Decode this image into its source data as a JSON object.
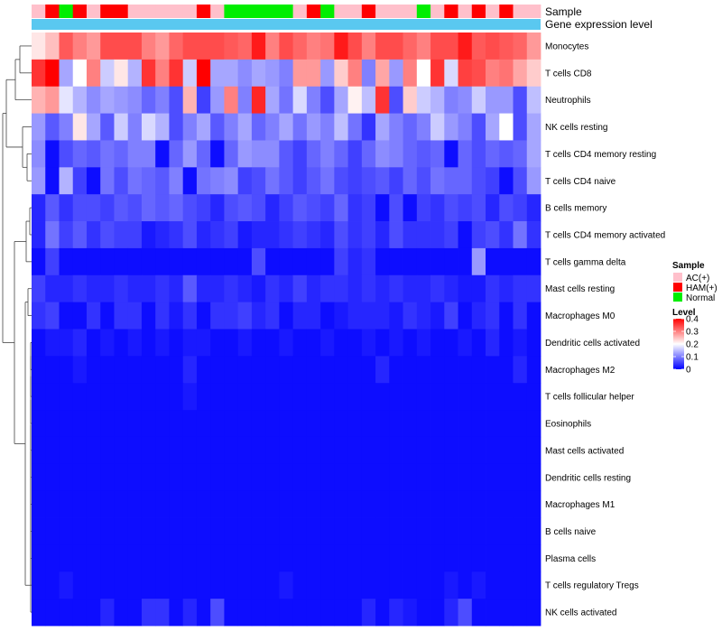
{
  "chart_data": {
    "type": "heatmap",
    "annotation_labels": [
      "Sample",
      "Gene expression level"
    ],
    "annotation_sample": [
      "AC(+)",
      "HAM(+)",
      "Normal",
      "HAM(+)",
      "AC(+)",
      "HAM(+)",
      "HAM(+)",
      "AC(+)",
      "AC(+)",
      "AC(+)",
      "AC(+)",
      "AC(+)",
      "HAM(+)",
      "AC(+)",
      "Normal",
      "Normal",
      "Normal",
      "Normal",
      "Normal",
      "AC(+)",
      "HAM(+)",
      "Normal",
      "AC(+)",
      "AC(+)",
      "HAM(+)",
      "AC(+)",
      "AC(+)",
      "AC(+)",
      "Normal",
      "AC(+)",
      "HAM(+)",
      "AC(+)",
      "HAM(+)",
      "AC(+)",
      "HAM(+)",
      "AC(+)",
      "AC(+)"
    ],
    "rows": [
      {
        "name": "Monocytes",
        "values": [
          0.22,
          0.25,
          0.33,
          0.3,
          0.28,
          0.34,
          0.34,
          0.34,
          0.3,
          0.28,
          0.32,
          0.34,
          0.34,
          0.34,
          0.33,
          0.32,
          0.38,
          0.3,
          0.34,
          0.32,
          0.3,
          0.31,
          0.38,
          0.34,
          0.3,
          0.34,
          0.34,
          0.32,
          0.3,
          0.34,
          0.34,
          0.38,
          0.33,
          0.34,
          0.33,
          0.32,
          0.28
        ]
      },
      {
        "name": "T cells CD8",
        "values": [
          0.36,
          0.4,
          0.13,
          0.2,
          0.3,
          0.16,
          0.22,
          0.14,
          0.36,
          0.3,
          0.36,
          0.16,
          0.4,
          0.13,
          0.13,
          0.11,
          0.13,
          0.12,
          0.1,
          0.28,
          0.28,
          0.12,
          0.24,
          0.3,
          0.1,
          0.27,
          0.12,
          0.3,
          0.2,
          0.36,
          0.17,
          0.35,
          0.34,
          0.3,
          0.31,
          0.27,
          0.24
        ]
      },
      {
        "name": "Neutrophils",
        "values": [
          0.26,
          0.28,
          0.18,
          0.14,
          0.11,
          0.13,
          0.12,
          0.11,
          0.08,
          0.1,
          0.06,
          0.26,
          0.05,
          0.12,
          0.3,
          0.1,
          0.37,
          0.13,
          0.09,
          0.17,
          0.1,
          0.06,
          0.13,
          0.21,
          0.15,
          0.36,
          0.06,
          0.24,
          0.16,
          0.14,
          0.1,
          0.11,
          0.16,
          0.12,
          0.12,
          0.06,
          0.15
        ]
      },
      {
        "name": "NK cells resting",
        "values": [
          0.12,
          0.07,
          0.1,
          0.22,
          0.13,
          0.07,
          0.16,
          0.1,
          0.17,
          0.14,
          0.06,
          0.1,
          0.13,
          0.07,
          0.1,
          0.13,
          0.08,
          0.1,
          0.13,
          0.09,
          0.12,
          0.1,
          0.15,
          0.09,
          0.04,
          0.13,
          0.1,
          0.08,
          0.1,
          0.16,
          0.12,
          0.1,
          0.06,
          0.13,
          0.2,
          0.06,
          0.13
        ]
      },
      {
        "name": "T cells CD4 memory resting",
        "values": [
          0.11,
          0.01,
          0.06,
          0.08,
          0.07,
          0.09,
          0.08,
          0.1,
          0.1,
          0.01,
          0.08,
          0.12,
          0.08,
          0.01,
          0.08,
          0.12,
          0.11,
          0.11,
          0.07,
          0.05,
          0.08,
          0.1,
          0.08,
          0.05,
          0.08,
          0.11,
          0.1,
          0.08,
          0.07,
          0.08,
          0.01,
          0.08,
          0.06,
          0.08,
          0.07,
          0.08,
          0.13
        ]
      },
      {
        "name": "T cells CD4 naive",
        "values": [
          0.12,
          0.01,
          0.14,
          0.05,
          0.01,
          0.09,
          0.06,
          0.09,
          0.08,
          0.07,
          0.1,
          0.01,
          0.09,
          0.1,
          0.11,
          0.05,
          0.06,
          0.09,
          0.07,
          0.05,
          0.07,
          0.09,
          0.06,
          0.05,
          0.06,
          0.07,
          0.05,
          0.08,
          0.06,
          0.09,
          0.08,
          0.08,
          0.06,
          0.05,
          0.01,
          0.06,
          0.12
        ]
      },
      {
        "name": "B cells memory",
        "values": [
          0.03,
          0.07,
          0.04,
          0.06,
          0.06,
          0.05,
          0.07,
          0.06,
          0.08,
          0.07,
          0.08,
          0.06,
          0.05,
          0.03,
          0.06,
          0.07,
          0.06,
          0.03,
          0.05,
          0.07,
          0.06,
          0.05,
          0.08,
          0.04,
          0.05,
          0.01,
          0.06,
          0.01,
          0.05,
          0.04,
          0.06,
          0.05,
          0.06,
          0.03,
          0.06,
          0.05,
          0.03
        ]
      },
      {
        "name": "T cells CD4 memory activated",
        "values": [
          0.03,
          0.09,
          0.05,
          0.07,
          0.04,
          0.06,
          0.05,
          0.05,
          0.02,
          0.03,
          0.04,
          0.06,
          0.03,
          0.04,
          0.05,
          0.02,
          0.03,
          0.03,
          0.04,
          0.05,
          0.04,
          0.03,
          0.06,
          0.04,
          0.05,
          0.03,
          0.06,
          0.04,
          0.04,
          0.04,
          0.05,
          0.01,
          0.05,
          0.06,
          0.04,
          0.09,
          0.04
        ]
      },
      {
        "name": "T cells gamma delta",
        "values": [
          0.01,
          0.05,
          0.01,
          0.01,
          0.01,
          0.01,
          0.01,
          0.01,
          0.01,
          0.01,
          0.01,
          0.01,
          0.01,
          0.01,
          0.01,
          0.01,
          0.06,
          0.01,
          0.01,
          0.01,
          0.01,
          0.01,
          0.05,
          0.03,
          0.04,
          0.01,
          0.01,
          0.01,
          0.01,
          0.01,
          0.01,
          0.01,
          0.12,
          0.01,
          0.01,
          0.01,
          0.01
        ]
      },
      {
        "name": "Mast cells resting",
        "values": [
          0.05,
          0.03,
          0.03,
          0.04,
          0.03,
          0.03,
          0.04,
          0.03,
          0.03,
          0.04,
          0.03,
          0.07,
          0.03,
          0.03,
          0.04,
          0.03,
          0.02,
          0.04,
          0.03,
          0.05,
          0.03,
          0.04,
          0.04,
          0.03,
          0.04,
          0.03,
          0.04,
          0.03,
          0.03,
          0.04,
          0.03,
          0.02,
          0.02,
          0.04,
          0.03,
          0.04,
          0.04
        ]
      },
      {
        "name": "Macrophages M0",
        "values": [
          0.04,
          0.05,
          0.01,
          0.01,
          0.04,
          0.01,
          0.04,
          0.04,
          0.01,
          0.04,
          0.02,
          0.04,
          0.01,
          0.04,
          0.04,
          0.05,
          0.03,
          0.04,
          0.01,
          0.03,
          0.03,
          0.01,
          0.02,
          0.03,
          0.03,
          0.03,
          0.02,
          0.04,
          0.03,
          0.02,
          0.05,
          0.01,
          0.03,
          0.04,
          0.01,
          0.04,
          0.01
        ]
      },
      {
        "name": "Dendritic cells activated",
        "values": [
          0.01,
          0.02,
          0.02,
          0.03,
          0.01,
          0.02,
          0.01,
          0.02,
          0.01,
          0.02,
          0.01,
          0.02,
          0.02,
          0.01,
          0.01,
          0.02,
          0.01,
          0.01,
          0.02,
          0.01,
          0.01,
          0.02,
          0.01,
          0.01,
          0.02,
          0.01,
          0.02,
          0.01,
          0.02,
          0.01,
          0.01,
          0.02,
          0.01,
          0.03,
          0.01,
          0.02,
          0.01
        ]
      },
      {
        "name": "Macrophages M2",
        "values": [
          0.01,
          0.01,
          0.01,
          0.02,
          0.01,
          0.01,
          0.01,
          0.01,
          0.01,
          0.01,
          0.01,
          0.03,
          0.01,
          0.01,
          0.01,
          0.01,
          0.01,
          0.01,
          0.01,
          0.01,
          0.01,
          0.01,
          0.01,
          0.01,
          0.01,
          0.03,
          0.01,
          0.01,
          0.01,
          0.01,
          0.01,
          0.01,
          0.01,
          0.01,
          0.01,
          0.03,
          0.01
        ]
      },
      {
        "name": "T cells follicular helper",
        "values": [
          0.01,
          0.01,
          0.01,
          0.01,
          0.01,
          0.01,
          0.01,
          0.01,
          0.01,
          0.01,
          0.01,
          0.02,
          0.01,
          0.01,
          0.01,
          0.01,
          0.01,
          0.01,
          0.01,
          0.01,
          0.01,
          0.01,
          0.01,
          0.01,
          0.01,
          0.01,
          0.01,
          0.01,
          0.01,
          0.01,
          0.01,
          0.01,
          0.01,
          0.01,
          0.01,
          0.01,
          0.01
        ]
      },
      {
        "name": "Eosinophils",
        "values": [
          0.01,
          0.01,
          0.01,
          0.01,
          0.01,
          0.01,
          0.01,
          0.01,
          0.01,
          0.01,
          0.01,
          0.01,
          0.01,
          0.01,
          0.01,
          0.01,
          0.01,
          0.01,
          0.01,
          0.01,
          0.01,
          0.01,
          0.01,
          0.01,
          0.01,
          0.01,
          0.01,
          0.01,
          0.01,
          0.01,
          0.01,
          0.01,
          0.01,
          0.01,
          0.01,
          0.01,
          0.01
        ]
      },
      {
        "name": "Mast cells activated",
        "values": [
          0.01,
          0.01,
          0.01,
          0.01,
          0.01,
          0.01,
          0.01,
          0.01,
          0.01,
          0.01,
          0.01,
          0.01,
          0.01,
          0.01,
          0.01,
          0.01,
          0.01,
          0.01,
          0.01,
          0.01,
          0.01,
          0.01,
          0.01,
          0.01,
          0.01,
          0.01,
          0.01,
          0.01,
          0.01,
          0.01,
          0.01,
          0.01,
          0.01,
          0.01,
          0.01,
          0.01,
          0.01
        ]
      },
      {
        "name": "Dendritic cells resting",
        "values": [
          0.01,
          0.01,
          0.01,
          0.01,
          0.01,
          0.01,
          0.01,
          0.01,
          0.01,
          0.01,
          0.01,
          0.01,
          0.01,
          0.01,
          0.01,
          0.01,
          0.01,
          0.01,
          0.01,
          0.01,
          0.01,
          0.01,
          0.01,
          0.01,
          0.01,
          0.01,
          0.01,
          0.01,
          0.01,
          0.01,
          0.01,
          0.01,
          0.01,
          0.01,
          0.01,
          0.01,
          0.01
        ]
      },
      {
        "name": "Macrophages M1",
        "values": [
          0.01,
          0.01,
          0.01,
          0.01,
          0.01,
          0.01,
          0.01,
          0.01,
          0.01,
          0.01,
          0.01,
          0.01,
          0.01,
          0.01,
          0.01,
          0.01,
          0.01,
          0.01,
          0.01,
          0.01,
          0.01,
          0.01,
          0.01,
          0.01,
          0.01,
          0.01,
          0.01,
          0.01,
          0.01,
          0.01,
          0.01,
          0.01,
          0.01,
          0.01,
          0.01,
          0.01,
          0.01
        ]
      },
      {
        "name": "B cells naive",
        "values": [
          0.01,
          0.01,
          0.01,
          0.01,
          0.01,
          0.01,
          0.01,
          0.01,
          0.01,
          0.01,
          0.01,
          0.01,
          0.01,
          0.01,
          0.01,
          0.01,
          0.01,
          0.01,
          0.01,
          0.01,
          0.01,
          0.01,
          0.01,
          0.01,
          0.01,
          0.01,
          0.01,
          0.01,
          0.01,
          0.01,
          0.01,
          0.01,
          0.01,
          0.01,
          0.01,
          0.01,
          0.01
        ]
      },
      {
        "name": "Plasma cells",
        "values": [
          0.01,
          0.01,
          0.01,
          0.01,
          0.01,
          0.01,
          0.01,
          0.01,
          0.01,
          0.01,
          0.01,
          0.01,
          0.01,
          0.01,
          0.01,
          0.01,
          0.01,
          0.01,
          0.01,
          0.01,
          0.01,
          0.01,
          0.01,
          0.01,
          0.01,
          0.01,
          0.01,
          0.01,
          0.01,
          0.01,
          0.01,
          0.01,
          0.01,
          0.01,
          0.01,
          0.01,
          0.01
        ]
      },
      {
        "name": "T cells regulatory  Tregs",
        "values": [
          0.01,
          0.01,
          0.02,
          0.01,
          0.01,
          0.01,
          0.01,
          0.01,
          0.01,
          0.01,
          0.01,
          0.01,
          0.01,
          0.01,
          0.01,
          0.01,
          0.01,
          0.01,
          0.02,
          0.01,
          0.01,
          0.01,
          0.01,
          0.01,
          0.01,
          0.01,
          0.01,
          0.01,
          0.01,
          0.01,
          0.02,
          0.01,
          0.02,
          0.01,
          0.01,
          0.01,
          0.01
        ]
      },
      {
        "name": "NK cells activated",
        "values": [
          0.01,
          0.01,
          0.01,
          0.01,
          0.01,
          0.03,
          0.01,
          0.01,
          0.04,
          0.04,
          0.01,
          0.03,
          0.01,
          0.06,
          0.01,
          0.01,
          0.01,
          0.01,
          0.01,
          0.01,
          0.01,
          0.01,
          0.01,
          0.01,
          0.03,
          0.01,
          0.03,
          0.02,
          0.01,
          0.01,
          0.03,
          0.06,
          0.01,
          0.01,
          0.01,
          0.01,
          0.01
        ]
      }
    ],
    "legend_sample": {
      "title": "Sample",
      "entries": [
        {
          "label": "AC(+)",
          "color": "#ffc0cb"
        },
        {
          "label": "HAM(+)",
          "color": "#ff0000"
        },
        {
          "label": "Normal",
          "color": "#00ee00"
        }
      ]
    },
    "legend_level": {
      "title": "Level",
      "ticks": [
        "0.4",
        "0.3",
        "0.2",
        "0.1",
        "0"
      ],
      "range": [
        0,
        0.4
      ]
    },
    "colors": {
      "low": "#0000ff",
      "mid": "#ffffff",
      "high": "#ff0000",
      "gene_expression_bar": "#5ac8f0"
    }
  }
}
